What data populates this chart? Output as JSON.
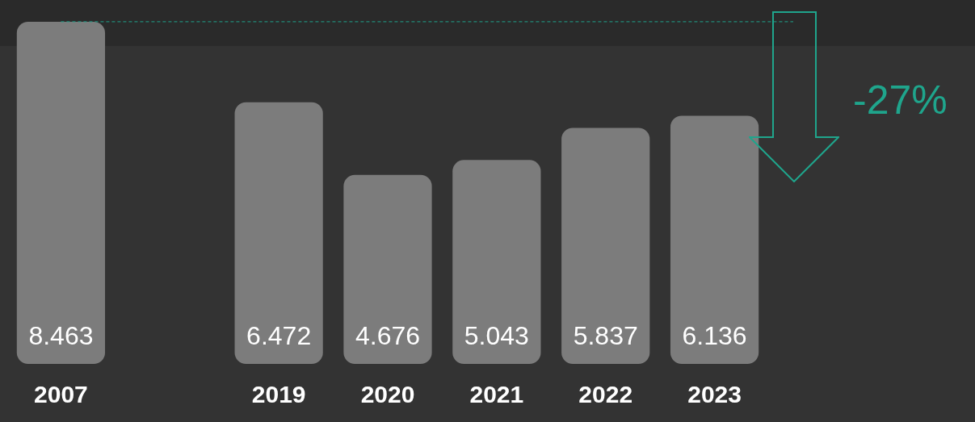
{
  "chart_data": {
    "type": "bar",
    "categories": [
      "2007",
      null,
      "2019",
      "2020",
      "2021",
      "2022",
      "2023"
    ],
    "values": [
      8.463,
      null,
      6.472,
      4.676,
      5.043,
      5.837,
      6.136
    ],
    "color": "#7c7c7c",
    "data_labels": true,
    "grid": false,
    "legend": false,
    "relative": false,
    "ref_lines": [
      {
        "axis": "y",
        "value": 8.463,
        "color": "#1fa58c",
        "line_style": "dashed"
      }
    ],
    "annotations": [
      "-27%"
    ]
  }
}
